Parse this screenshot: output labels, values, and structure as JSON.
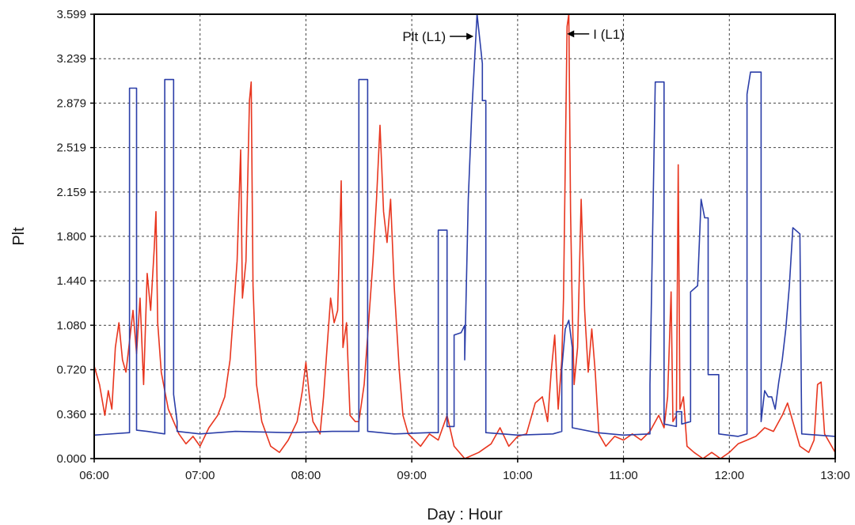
{
  "chart_data": {
    "type": "line",
    "xlabel": "Day : Hour",
    "ylabel": "Plt",
    "xlim": [
      "06:00",
      "13:00"
    ],
    "x_ticks": [
      "06:00",
      "07:00",
      "08:00",
      "09:00",
      "10:00",
      "11:00",
      "12:00",
      "13:00"
    ],
    "ylim": [
      0.0,
      3.599
    ],
    "y_ticks": [
      "0.000",
      "0.360",
      "0.720",
      "1.080",
      "1.440",
      "1.800",
      "2.159",
      "2.519",
      "2.879",
      "3.239",
      "3.599"
    ],
    "grid": true,
    "annotations": [
      {
        "text": "Plt (L1)",
        "arrow": "right",
        "x": "09:35",
        "y": 3.42
      },
      {
        "text": "I (L1)",
        "arrow": "left",
        "x": "10:28",
        "y": 3.44
      }
    ],
    "series": [
      {
        "name": "Plt (L1)",
        "color": "#2b3ea8",
        "points": [
          [
            "06:00",
            0.19
          ],
          [
            "06:20",
            0.21
          ],
          [
            "06:20",
            3.0
          ],
          [
            "06:24",
            3.0
          ],
          [
            "06:24",
            0.23
          ],
          [
            "06:30",
            0.22
          ],
          [
            "06:40",
            0.2
          ],
          [
            "06:40",
            3.07
          ],
          [
            "06:45",
            3.07
          ],
          [
            "06:45",
            0.52
          ],
          [
            "06:47",
            0.3
          ],
          [
            "06:47",
            0.22
          ],
          [
            "07:00",
            0.2
          ],
          [
            "07:20",
            0.22
          ],
          [
            "07:50",
            0.21
          ],
          [
            "08:15",
            0.22
          ],
          [
            "08:30",
            0.22
          ],
          [
            "08:30",
            3.07
          ],
          [
            "08:35",
            3.07
          ],
          [
            "08:35",
            0.22
          ],
          [
            "08:50",
            0.2
          ],
          [
            "09:10",
            0.21
          ],
          [
            "09:15",
            0.21
          ],
          [
            "09:15",
            1.85
          ],
          [
            "09:20",
            1.85
          ],
          [
            "09:20",
            0.26
          ],
          [
            "09:24",
            0.26
          ],
          [
            "09:24",
            1.0
          ],
          [
            "09:28",
            1.02
          ],
          [
            "09:30",
            1.08
          ],
          [
            "09:30",
            0.8
          ],
          [
            "09:32",
            2.1
          ],
          [
            "09:34",
            2.8
          ],
          [
            "09:37",
            3.6
          ],
          [
            "09:40",
            3.2
          ],
          [
            "09:40",
            2.9
          ],
          [
            "09:42",
            2.9
          ],
          [
            "09:42",
            0.21
          ],
          [
            "10:00",
            0.19
          ],
          [
            "10:20",
            0.2
          ],
          [
            "10:25",
            0.22
          ],
          [
            "10:25",
            0.72
          ],
          [
            "10:27",
            1.05
          ],
          [
            "10:29",
            1.12
          ],
          [
            "10:31",
            0.9
          ],
          [
            "10:31",
            0.25
          ],
          [
            "10:45",
            0.21
          ],
          [
            "11:00",
            0.19
          ],
          [
            "11:15",
            0.2
          ],
          [
            "11:15",
            0.6
          ],
          [
            "11:18",
            3.05
          ],
          [
            "11:23",
            3.05
          ],
          [
            "11:23",
            0.28
          ],
          [
            "11:30",
            0.26
          ],
          [
            "11:30",
            0.38
          ],
          [
            "11:33",
            0.38
          ],
          [
            "11:33",
            0.28
          ],
          [
            "11:38",
            0.3
          ],
          [
            "11:38",
            1.35
          ],
          [
            "11:42",
            1.4
          ],
          [
            "11:44",
            2.1
          ],
          [
            "11:46",
            1.95
          ],
          [
            "11:48",
            1.95
          ],
          [
            "11:48",
            0.68
          ],
          [
            "11:54",
            0.68
          ],
          [
            "11:54",
            0.2
          ],
          [
            "12:05",
            0.18
          ],
          [
            "12:10",
            0.2
          ],
          [
            "12:10",
            2.95
          ],
          [
            "12:12",
            3.13
          ],
          [
            "12:18",
            3.13
          ],
          [
            "12:18",
            0.3
          ],
          [
            "12:20",
            0.55
          ],
          [
            "12:22",
            0.5
          ],
          [
            "12:24",
            0.5
          ],
          [
            "12:26",
            0.4
          ],
          [
            "12:28",
            0.62
          ],
          [
            "12:30",
            0.8
          ],
          [
            "12:32",
            1.05
          ],
          [
            "12:34",
            1.4
          ],
          [
            "12:36",
            1.87
          ],
          [
            "12:40",
            1.82
          ],
          [
            "12:41",
            0.2
          ],
          [
            "13:00",
            0.18
          ]
        ]
      },
      {
        "name": "I (L1)",
        "color": "#e8361f",
        "points": [
          [
            "06:00",
            0.75
          ],
          [
            "06:03",
            0.6
          ],
          [
            "06:06",
            0.35
          ],
          [
            "06:08",
            0.55
          ],
          [
            "06:10",
            0.4
          ],
          [
            "06:12",
            0.9
          ],
          [
            "06:14",
            1.1
          ],
          [
            "06:16",
            0.8
          ],
          [
            "06:18",
            0.7
          ],
          [
            "06:20",
            0.95
          ],
          [
            "06:22",
            1.2
          ],
          [
            "06:24",
            0.85
          ],
          [
            "06:26",
            1.3
          ],
          [
            "06:28",
            0.6
          ],
          [
            "06:30",
            1.5
          ],
          [
            "06:32",
            1.2
          ],
          [
            "06:34",
            1.7
          ],
          [
            "06:35",
            2.0
          ],
          [
            "06:36",
            1.1
          ],
          [
            "06:38",
            0.7
          ],
          [
            "06:40",
            0.55
          ],
          [
            "06:42",
            0.4
          ],
          [
            "06:45",
            0.3
          ],
          [
            "06:48",
            0.2
          ],
          [
            "06:52",
            0.12
          ],
          [
            "06:56",
            0.18
          ],
          [
            "07:00",
            0.1
          ],
          [
            "07:05",
            0.25
          ],
          [
            "07:10",
            0.35
          ],
          [
            "07:14",
            0.5
          ],
          [
            "07:17",
            0.8
          ],
          [
            "07:19",
            1.2
          ],
          [
            "07:21",
            1.6
          ],
          [
            "07:23",
            2.5
          ],
          [
            "07:24",
            1.3
          ],
          [
            "07:26",
            1.6
          ],
          [
            "07:28",
            2.9
          ],
          [
            "07:29",
            3.05
          ],
          [
            "07:30",
            1.4
          ],
          [
            "07:32",
            0.6
          ],
          [
            "07:35",
            0.3
          ],
          [
            "07:40",
            0.1
          ],
          [
            "07:45",
            0.05
          ],
          [
            "07:50",
            0.15
          ],
          [
            "07:55",
            0.3
          ],
          [
            "07:58",
            0.55
          ],
          [
            "08:00",
            0.78
          ],
          [
            "08:02",
            0.5
          ],
          [
            "08:04",
            0.3
          ],
          [
            "08:08",
            0.2
          ],
          [
            "08:10",
            0.5
          ],
          [
            "08:14",
            1.3
          ],
          [
            "08:16",
            1.1
          ],
          [
            "08:18",
            1.2
          ],
          [
            "08:20",
            2.25
          ],
          [
            "08:21",
            0.9
          ],
          [
            "08:23",
            1.1
          ],
          [
            "08:25",
            0.35
          ],
          [
            "08:28",
            0.3
          ],
          [
            "08:30",
            0.3
          ],
          [
            "08:33",
            0.6
          ],
          [
            "08:36",
            1.2
          ],
          [
            "08:38",
            1.6
          ],
          [
            "08:40",
            2.1
          ],
          [
            "08:42",
            2.7
          ],
          [
            "08:44",
            2.0
          ],
          [
            "08:46",
            1.75
          ],
          [
            "08:48",
            2.1
          ],
          [
            "08:50",
            1.4
          ],
          [
            "08:53",
            0.7
          ],
          [
            "08:55",
            0.35
          ],
          [
            "08:58",
            0.2
          ],
          [
            "09:05",
            0.1
          ],
          [
            "09:10",
            0.2
          ],
          [
            "09:15",
            0.15
          ],
          [
            "09:20",
            0.35
          ],
          [
            "09:24",
            0.1
          ],
          [
            "09:30",
            0.0
          ],
          [
            "09:38",
            0.05
          ],
          [
            "09:45",
            0.12
          ],
          [
            "09:50",
            0.25
          ],
          [
            "09:55",
            0.1
          ],
          [
            "10:00",
            0.18
          ],
          [
            "10:05",
            0.2
          ],
          [
            "10:10",
            0.45
          ],
          [
            "10:14",
            0.5
          ],
          [
            "10:17",
            0.3
          ],
          [
            "10:19",
            0.7
          ],
          [
            "10:21",
            1.0
          ],
          [
            "10:23",
            0.4
          ],
          [
            "10:25",
            0.8
          ],
          [
            "10:26",
            1.3
          ],
          [
            "10:28",
            3.5
          ],
          [
            "10:29",
            3.6
          ],
          [
            "10:30",
            2.0
          ],
          [
            "10:31",
            1.2
          ],
          [
            "10:32",
            0.6
          ],
          [
            "10:34",
            0.9
          ],
          [
            "10:36",
            2.1
          ],
          [
            "10:38",
            1.2
          ],
          [
            "10:40",
            0.7
          ],
          [
            "10:42",
            1.05
          ],
          [
            "10:44",
            0.7
          ],
          [
            "10:46",
            0.2
          ],
          [
            "10:50",
            0.1
          ],
          [
            "10:55",
            0.18
          ],
          [
            "11:00",
            0.15
          ],
          [
            "11:05",
            0.2
          ],
          [
            "11:10",
            0.15
          ],
          [
            "11:15",
            0.22
          ],
          [
            "11:20",
            0.35
          ],
          [
            "11:23",
            0.25
          ],
          [
            "11:25",
            0.5
          ],
          [
            "11:27",
            1.35
          ],
          [
            "11:28",
            0.3
          ],
          [
            "11:30",
            0.35
          ],
          [
            "11:31",
            2.38
          ],
          [
            "11:32",
            0.4
          ],
          [
            "11:34",
            0.5
          ],
          [
            "11:36",
            0.1
          ],
          [
            "11:40",
            0.05
          ],
          [
            "11:45",
            0.0
          ],
          [
            "11:50",
            0.05
          ],
          [
            "11:55",
            0.0
          ],
          [
            "12:00",
            0.05
          ],
          [
            "12:05",
            0.12
          ],
          [
            "12:10",
            0.15
          ],
          [
            "12:15",
            0.18
          ],
          [
            "12:20",
            0.25
          ],
          [
            "12:25",
            0.22
          ],
          [
            "12:30",
            0.35
          ],
          [
            "12:33",
            0.45
          ],
          [
            "12:36",
            0.3
          ],
          [
            "12:40",
            0.1
          ],
          [
            "12:45",
            0.05
          ],
          [
            "12:48",
            0.15
          ],
          [
            "12:50",
            0.6
          ],
          [
            "12:52",
            0.62
          ],
          [
            "12:54",
            0.2
          ],
          [
            "12:58",
            0.1
          ],
          [
            "13:00",
            0.05
          ]
        ]
      }
    ]
  }
}
